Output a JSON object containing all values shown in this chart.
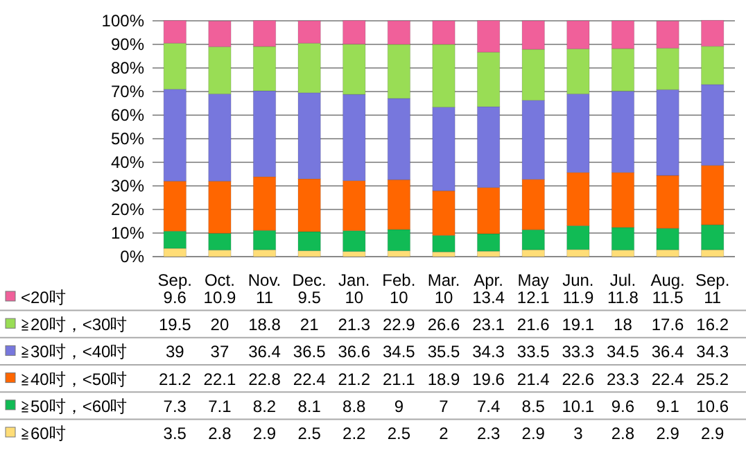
{
  "chart_data": {
    "type": "bar",
    "stacked": true,
    "categories": [
      "Sep.",
      "Oct.",
      "Nov.",
      "Dec.",
      "Jan.",
      "Feb.",
      "Mar.",
      "Apr.",
      "May",
      "Jun.",
      "Jul.",
      "Aug.",
      "Sep."
    ],
    "series": [
      {
        "name": "≧60吋",
        "color": "#ffdd77",
        "values": [
          3.5,
          2.8,
          2.9,
          2.5,
          2.2,
          2.5,
          2,
          2.3,
          2.9,
          3,
          2.8,
          2.9,
          2.9
        ]
      },
      {
        "name": "≧50吋，<60吋",
        "color": "#11bb55",
        "values": [
          7.3,
          7.1,
          8.2,
          8.1,
          8.8,
          9,
          7,
          7.4,
          8.5,
          10.1,
          9.6,
          9.1,
          10.6
        ]
      },
      {
        "name": "≧40吋，<50吋",
        "color": "#ff6600",
        "values": [
          21.2,
          22.1,
          22.8,
          22.4,
          21.2,
          21.1,
          18.9,
          19.6,
          21.4,
          22.6,
          23.3,
          22.4,
          25.2
        ]
      },
      {
        "name": "≧30吋，<40吋",
        "color": "#7777dd",
        "values": [
          39,
          37,
          36.4,
          36.5,
          36.6,
          34.5,
          35.5,
          34.3,
          33.5,
          33.3,
          34.5,
          36.4,
          34.3
        ]
      },
      {
        "name": "≧20吋，<30吋",
        "color": "#99dd55",
        "values": [
          19.5,
          20,
          18.8,
          21,
          21.3,
          22.9,
          26.6,
          23.1,
          21.6,
          19.1,
          18,
          17.6,
          16.2
        ]
      },
      {
        "name": "<20吋",
        "color": "#f0609a",
        "values": [
          9.6,
          10.9,
          11,
          9.5,
          10,
          10,
          10,
          13.4,
          12.1,
          11.9,
          11.8,
          11.5,
          11
        ]
      }
    ],
    "ylim": [
      0,
      100
    ],
    "yticks": [
      {
        "value": 0,
        "label": "0%"
      },
      {
        "value": 10,
        "label": "10%"
      },
      {
        "value": 20,
        "label": "20%"
      },
      {
        "value": 30,
        "label": "30%"
      },
      {
        "value": 40,
        "label": "40%"
      },
      {
        "value": 50,
        "label": "50%"
      },
      {
        "value": 60,
        "label": "60%"
      },
      {
        "value": 70,
        "label": "70%"
      },
      {
        "value": 80,
        "label": "80%"
      },
      {
        "value": 90,
        "label": "90%"
      },
      {
        "value": 100,
        "label": "100%"
      }
    ],
    "grid": "y",
    "data_labels": true,
    "legend": "bottom"
  }
}
